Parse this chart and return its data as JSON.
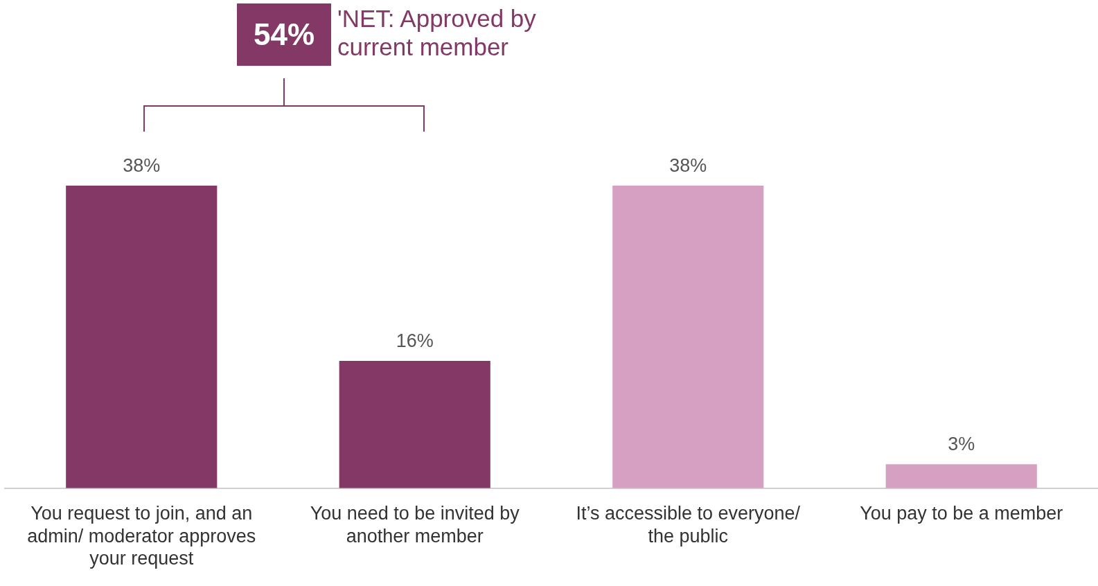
{
  "chart_data": {
    "type": "bar",
    "categories": [
      "You request to join, and an admin/ moderator approves your request",
      "You need to be invited by another member",
      "It’s accessible to everyone/ the public",
      "You pay to be a member"
    ],
    "values": [
      38,
      16,
      38,
      3
    ],
    "colors": [
      "#833865",
      "#833865",
      "#d6a0c2",
      "#d6a0c2"
    ],
    "value_labels": [
      "38%",
      "16%",
      "38%",
      "3%"
    ],
    "annotations": [
      "54%",
      "'NET: Approved by current member"
    ],
    "grid": false,
    "legend": false
  }
}
